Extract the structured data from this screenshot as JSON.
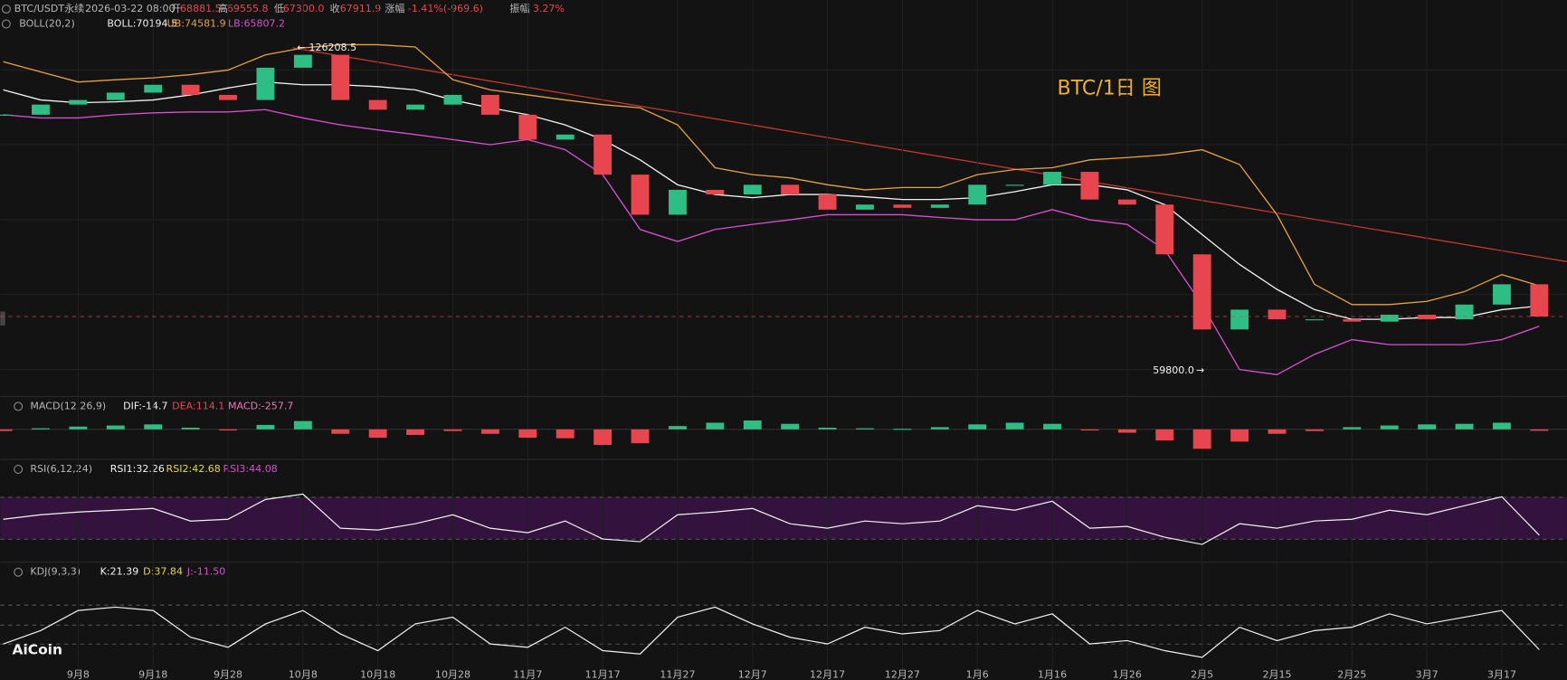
{
  "header": {
    "symbol": "BTC/USDT永续",
    "datetime": "2026-03-22 08:00",
    "open_label": "开",
    "open": "68881.5",
    "high_label": "高",
    "high": "69555.8",
    "low_label": "低",
    "low": "67300.0",
    "close_label": "收",
    "close": "67911.9",
    "change_label": "涨幅",
    "change": "-1.41%(-969.6)",
    "amplitude_label": "振幅",
    "amplitude": "3.27%"
  },
  "boll": {
    "label": "BOLL(20,2)",
    "mid": "BOLL:70194.5",
    "ub": "UB:74581.9",
    "lb": "LB:65807.2"
  },
  "chart_data": {
    "type": "candlestick",
    "title": "BTC/1日 图",
    "x_labels": [
      "9月8",
      "9月18",
      "9月28",
      "10月8",
      "10月18",
      "10月28",
      "11月7",
      "11月17",
      "11月27",
      "12月7",
      "12月17",
      "12月27",
      "1月6",
      "1月16",
      "1月26",
      "2月5",
      "2月15",
      "2月25",
      "3月7",
      "3月17"
    ],
    "close": [
      111700,
      113900,
      114900,
      116500,
      118200,
      116000,
      114900,
      121900,
      124700,
      114900,
      112800,
      113900,
      116000,
      111700,
      106300,
      107400,
      98700,
      90000,
      95400,
      94400,
      96500,
      94400,
      91100,
      92200,
      91500,
      92200,
      96500,
      96500,
      99300,
      93300,
      92200,
      81400,
      65100,
      69400,
      67300,
      67300,
      66800,
      68300,
      67300,
      70500,
      74900,
      67911.9
    ],
    "upper": [
      123200,
      121000,
      118800,
      119300,
      119700,
      120400,
      121400,
      124700,
      126200,
      126900,
      126900,
      126400,
      119300,
      117100,
      116000,
      114900,
      113900,
      113200,
      109500,
      100200,
      98700,
      98000,
      96500,
      95400,
      95900,
      95900,
      98700,
      99800,
      100200,
      101900,
      102400,
      103000,
      104100,
      100900,
      90000,
      74900,
      70500,
      70500,
      71200,
      73300,
      77000,
      74581.9
    ],
    "middle": [
      117100,
      114900,
      114300,
      114500,
      114900,
      116000,
      117500,
      118800,
      118200,
      118200,
      117800,
      117100,
      114900,
      113200,
      111700,
      109500,
      106300,
      101900,
      96500,
      94400,
      93700,
      94400,
      94400,
      93900,
      93300,
      93300,
      93700,
      95000,
      96500,
      96500,
      95400,
      92200,
      85700,
      79200,
      73800,
      69400,
      67300,
      67300,
      67700,
      67700,
      69400,
      70194.5
    ],
    "lower": [
      111700,
      111000,
      111000,
      111700,
      112100,
      112300,
      112300,
      112800,
      111000,
      109500,
      108400,
      107400,
      106300,
      105200,
      106300,
      104100,
      98700,
      86800,
      84200,
      86800,
      87900,
      88900,
      90000,
      90000,
      90000,
      89400,
      88900,
      88900,
      91100,
      88900,
      87900,
      82400,
      70500,
      56400,
      55300,
      59700,
      62900,
      61800,
      61800,
      61800,
      62900,
      65807.2
    ],
    "ylim": [
      51000,
      136600
    ],
    "high_mark": {
      "value": 126208.5,
      "index": 8
    },
    "low_mark": {
      "value": 59800,
      "label": "59800.0",
      "index": 32
    },
    "up_color": "#2ebd85",
    "down_color": "#e8464f",
    "upper_color": "#e6a23c",
    "middle_color": "#f2f2f2",
    "lower_color": "#d94fd1"
  },
  "indicators": {
    "macd": {
      "label": "MACD(12,26,9)",
      "dif": "DIF:-14.7",
      "dea": "DEA:114.1",
      "macd": "MACD:-257.7",
      "hist": [
        -300,
        200,
        500,
        700,
        900,
        300,
        -200,
        800,
        1500,
        -800,
        -1500,
        -1000,
        -300,
        -800,
        -1500,
        -1600,
        -2800,
        -2500,
        600,
        1200,
        1600,
        1000,
        300,
        200,
        100,
        400,
        900,
        1200,
        1000,
        -200,
        -600,
        -2000,
        -3500,
        -2200,
        -800,
        -300,
        400,
        700,
        900,
        1000,
        1200,
        -257.7
      ],
      "ylim": [
        -4500,
        4500
      ]
    },
    "rsi": {
      "label": "RSI(6,12,24)",
      "rsi1": "RSI1:32.26",
      "rsi2": "RSI2:42.68",
      "rsi3": "RSI3:44.08",
      "values": [
        50,
        55,
        58,
        60,
        62,
        48,
        50,
        72,
        78,
        40,
        38,
        45,
        55,
        40,
        35,
        48,
        28,
        25,
        55,
        58,
        62,
        45,
        40,
        48,
        45,
        48,
        65,
        60,
        70,
        40,
        42,
        30,
        22,
        45,
        40,
        48,
        50,
        60,
        55,
        65,
        75,
        32.26
      ],
      "ylim": [
        0,
        100
      ]
    },
    "kdj": {
      "label": "KDJ(9,3,3)",
      "k": "K:21.39",
      "d": "D:37.84",
      "j": "J:-11.50",
      "values": [
        30,
        50,
        80,
        85,
        80,
        40,
        25,
        60,
        80,
        45,
        20,
        60,
        70,
        30,
        25,
        55,
        20,
        15,
        70,
        85,
        60,
        40,
        30,
        55,
        45,
        50,
        80,
        60,
        75,
        30,
        35,
        20,
        10,
        55,
        35,
        50,
        55,
        75,
        60,
        70,
        80,
        21.39
      ],
      "ylim": [
        0,
        100
      ]
    }
  },
  "watermark": "AiCoin"
}
